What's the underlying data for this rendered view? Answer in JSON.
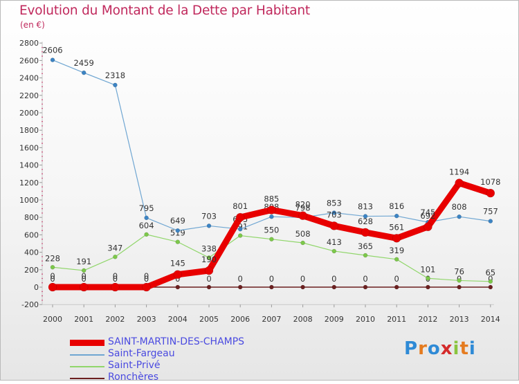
{
  "chart_data": {
    "type": "line",
    "title": "Evolution du Montant de la Dette par Habitant",
    "subtitle": "(en €)",
    "xlabel": "",
    "ylabel": "",
    "ylim": [
      -200,
      2800
    ],
    "yticks": [
      -200,
      0,
      200,
      400,
      600,
      800,
      1000,
      1200,
      1400,
      1600,
      1800,
      2000,
      2200,
      2400,
      2600,
      2800
    ],
    "categories": [
      "2000",
      "2001",
      "2002",
      "2003",
      "2004",
      "2005",
      "2006",
      "2007",
      "2008",
      "2009",
      "2010",
      "2011",
      "2012",
      "2013",
      "2014"
    ],
    "series": [
      {
        "name": "Ronchères",
        "color": "#6b1f1f",
        "values": [
          0,
          0,
          0,
          0,
          0,
          0,
          0,
          0,
          0,
          0,
          0,
          0,
          0,
          0,
          0
        ]
      },
      {
        "name": "Saint-Privé",
        "color": "#90d66a",
        "values": [
          228,
          191,
          347,
          604,
          519,
          338,
          591,
          550,
          508,
          413,
          365,
          319,
          101,
          76,
          65
        ]
      },
      {
        "name": "Saint-Fargeau",
        "color": "#6fa6d2",
        "values": [
          2606,
          2459,
          2318,
          795,
          649,
          703,
          665,
          808,
          798,
          853,
          813,
          816,
          745,
          808,
          757
        ]
      },
      {
        "name": "SAINT-MARTIN-DES-CHAMPS",
        "color": "#e80000",
        "values": [
          0,
          0,
          0,
          0,
          145,
          190,
          801,
          885,
          820,
          703,
          628,
          561,
          692,
          1194,
          1078
        ]
      }
    ],
    "grid": false,
    "legend_position": "bottom-left"
  },
  "legend_order": [
    "SAINT-MARTIN-DES-CHAMPS",
    "Saint-Fargeau",
    "Saint-Privé",
    "Ronchères"
  ],
  "logo_text": "Proxiti"
}
